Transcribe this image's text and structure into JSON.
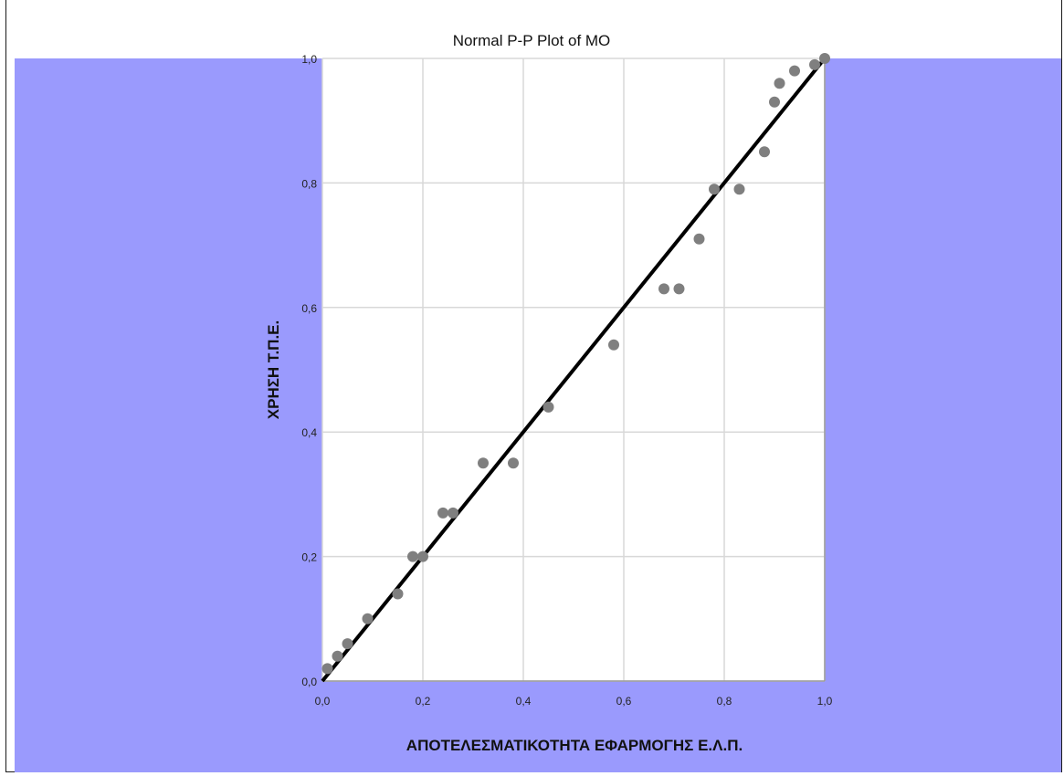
{
  "chart_data": {
    "type": "scatter",
    "title": "Normal P-P Plot of MO",
    "xlabel": "ΑΠΟΤΕΛΕΣΜΑΤΙΚΟΤΗΤΑ ΕΦΑΡΜΟΓΗΣ Ε.Λ.Π.",
    "ylabel": "ΧΡΗΣΗ Τ.Π.Ε.",
    "xlim": [
      0,
      1
    ],
    "ylim": [
      0,
      1
    ],
    "x_ticks": [
      "0,0",
      "0,2",
      "0,4",
      "0,6",
      "0,8",
      "1,0"
    ],
    "y_ticks": [
      "0,0",
      "0,2",
      "0,4",
      "0,6",
      "0,8",
      "1,0"
    ],
    "grid": true,
    "reference_line": {
      "from": [
        0,
        0
      ],
      "to": [
        1,
        1
      ]
    },
    "colors": {
      "background": "#9a9afd",
      "plot_area": "#ffffff",
      "points": "#7f7f7f",
      "line": "#000000",
      "grid": "#d8d8d8"
    },
    "points": [
      [
        0.01,
        0.02
      ],
      [
        0.03,
        0.04
      ],
      [
        0.05,
        0.06
      ],
      [
        0.09,
        0.1
      ],
      [
        0.15,
        0.14
      ],
      [
        0.18,
        0.2
      ],
      [
        0.2,
        0.2
      ],
      [
        0.24,
        0.27
      ],
      [
        0.26,
        0.27
      ],
      [
        0.32,
        0.35
      ],
      [
        0.38,
        0.35
      ],
      [
        0.45,
        0.44
      ],
      [
        0.58,
        0.54
      ],
      [
        0.68,
        0.63
      ],
      [
        0.71,
        0.63
      ],
      [
        0.75,
        0.71
      ],
      [
        0.78,
        0.79
      ],
      [
        0.83,
        0.79
      ],
      [
        0.88,
        0.85
      ],
      [
        0.9,
        0.93
      ],
      [
        0.91,
        0.96
      ],
      [
        0.94,
        0.98
      ],
      [
        0.98,
        0.99
      ],
      [
        1.0,
        1.0
      ]
    ]
  }
}
